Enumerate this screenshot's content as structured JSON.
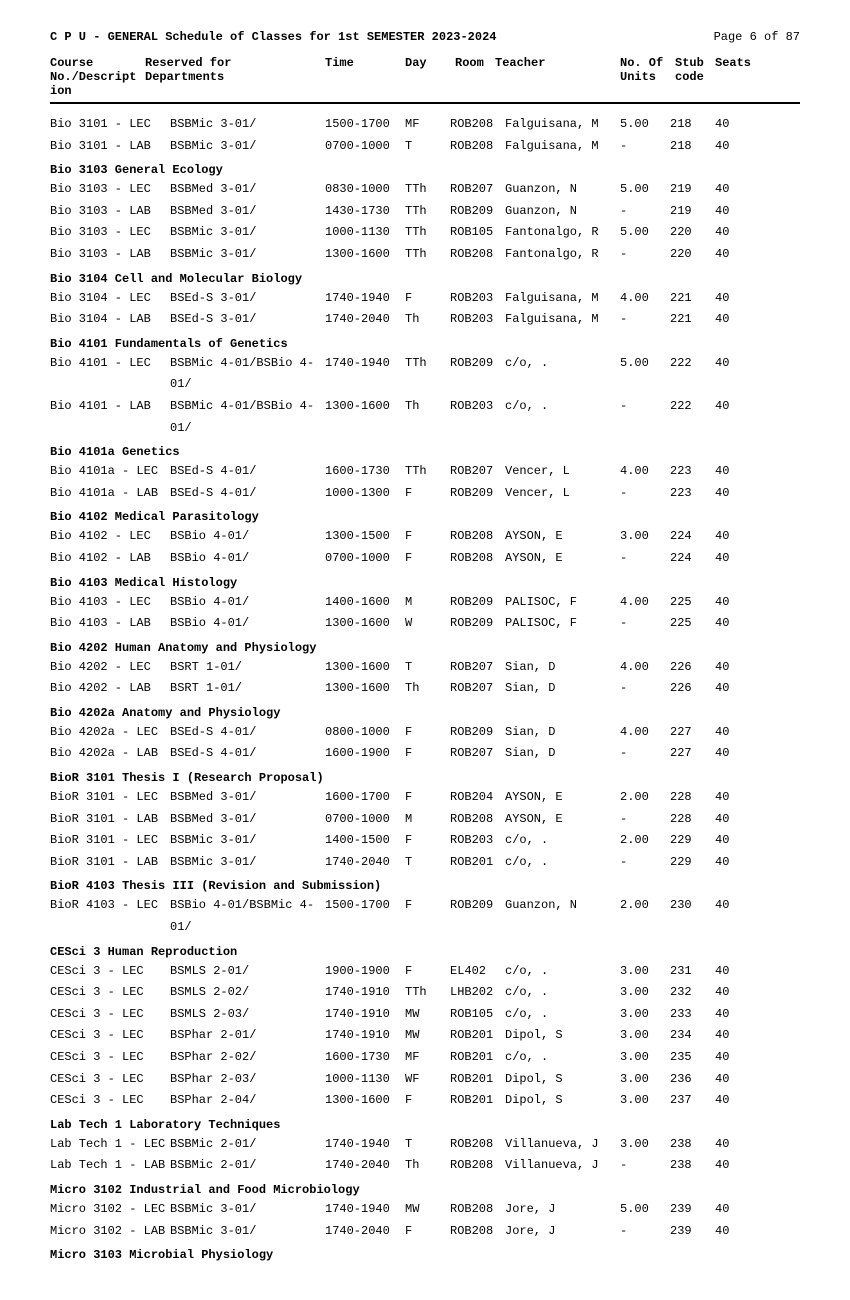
{
  "header": {
    "title": "C P U - GENERAL Schedule of Classes for 1st SEMESTER 2023-2024",
    "page": "Page 6 of 87"
  },
  "columns": {
    "course": "Course No./Descript\nion",
    "dept": "Reserved for Departments",
    "time": "Time",
    "day": "Day",
    "room": "Room",
    "teacher": "Teacher",
    "units": "No. Of Units",
    "stub": "Stub code",
    "seats": "Seats"
  },
  "sections": [
    {
      "title": "",
      "rows": [
        {
          "course": "Bio 3101 - LEC",
          "dept": "BSBMic 3-01/",
          "time": "1500-1700",
          "day": "MF",
          "room": "ROB208",
          "teacher": "Falguisana, M",
          "units": "5.00",
          "stub": "218",
          "seats": "40"
        },
        {
          "course": "Bio 3101 - LAB",
          "dept": "BSBMic 3-01/",
          "time": "0700-1000",
          "day": "T",
          "room": "ROB208",
          "teacher": "Falguisana, M",
          "units": "-",
          "stub": "218",
          "seats": "40"
        }
      ]
    },
    {
      "title": "Bio 3103 General Ecology",
      "rows": [
        {
          "course": "Bio 3103 - LEC",
          "dept": "BSBMed 3-01/",
          "time": "0830-1000",
          "day": "TTh",
          "room": "ROB207",
          "teacher": "Guanzon, N",
          "units": "5.00",
          "stub": "219",
          "seats": "40"
        },
        {
          "course": "Bio 3103 - LAB",
          "dept": "BSBMed 3-01/",
          "time": "1430-1730",
          "day": "TTh",
          "room": "ROB209",
          "teacher": "Guanzon, N",
          "units": "-",
          "stub": "219",
          "seats": "40"
        },
        {
          "course": "Bio 3103 - LEC",
          "dept": "BSBMic 3-01/",
          "time": "1000-1130",
          "day": "TTh",
          "room": "ROB105",
          "teacher": "Fantonalgo, R",
          "units": "5.00",
          "stub": "220",
          "seats": "40"
        },
        {
          "course": "Bio 3103 - LAB",
          "dept": "BSBMic 3-01/",
          "time": "1300-1600",
          "day": "TTh",
          "room": "ROB208",
          "teacher": "Fantonalgo, R",
          "units": "-",
          "stub": "220",
          "seats": "40"
        }
      ]
    },
    {
      "title": "Bio 3104 Cell and Molecular Biology",
      "rows": [
        {
          "course": "Bio 3104 - LEC",
          "dept": "BSEd-S 3-01/",
          "time": "1740-1940",
          "day": "F",
          "room": "ROB203",
          "teacher": "Falguisana, M",
          "units": "4.00",
          "stub": "221",
          "seats": "40"
        },
        {
          "course": "Bio 3104 - LAB",
          "dept": "BSEd-S 3-01/",
          "time": "1740-2040",
          "day": "Th",
          "room": "ROB203",
          "teacher": "Falguisana, M",
          "units": "-",
          "stub": "221",
          "seats": "40"
        }
      ]
    },
    {
      "title": "Bio 4101 Fundamentals of Genetics",
      "rows": [
        {
          "course": "Bio 4101 - LEC",
          "dept": "BSBMic 4-01/BSBio 4-01/",
          "time": "1740-1940",
          "day": "TTh",
          "room": "ROB209",
          "teacher": "c/o, .",
          "units": "5.00",
          "stub": "222",
          "seats": "40"
        },
        {
          "course": "Bio 4101 - LAB",
          "dept": "BSBMic 4-01/BSBio 4-01/",
          "time": "1300-1600",
          "day": "Th",
          "room": "ROB203",
          "teacher": "c/o, .",
          "units": "-",
          "stub": "222",
          "seats": "40"
        }
      ]
    },
    {
      "title": "Bio 4101a Genetics",
      "rows": [
        {
          "course": "Bio 4101a - LEC",
          "dept": "BSEd-S 4-01/",
          "time": "1600-1730",
          "day": "TTh",
          "room": "ROB207",
          "teacher": "Vencer, L",
          "units": "4.00",
          "stub": "223",
          "seats": "40"
        },
        {
          "course": "Bio 4101a - LAB",
          "dept": "BSEd-S 4-01/",
          "time": "1000-1300",
          "day": "F",
          "room": "ROB209",
          "teacher": "Vencer, L",
          "units": "-",
          "stub": "223",
          "seats": "40"
        }
      ]
    },
    {
      "title": "Bio 4102 Medical Parasitology",
      "rows": [
        {
          "course": "Bio 4102 - LEC",
          "dept": "BSBio 4-01/",
          "time": "1300-1500",
          "day": "F",
          "room": "ROB208",
          "teacher": "AYSON, E",
          "units": "3.00",
          "stub": "224",
          "seats": "40"
        },
        {
          "course": "Bio 4102 - LAB",
          "dept": "BSBio 4-01/",
          "time": "0700-1000",
          "day": "F",
          "room": "ROB208",
          "teacher": "AYSON, E",
          "units": "-",
          "stub": "224",
          "seats": "40"
        }
      ]
    },
    {
      "title": "Bio 4103 Medical Histology",
      "rows": [
        {
          "course": "Bio 4103 - LEC",
          "dept": "BSBio 4-01/",
          "time": "1400-1600",
          "day": "M",
          "room": "ROB209",
          "teacher": "PALISOC, F",
          "units": "4.00",
          "stub": "225",
          "seats": "40"
        },
        {
          "course": "Bio 4103 - LAB",
          "dept": "BSBio 4-01/",
          "time": "1300-1600",
          "day": "W",
          "room": "ROB209",
          "teacher": "PALISOC, F",
          "units": "-",
          "stub": "225",
          "seats": "40"
        }
      ]
    },
    {
      "title": "Bio 4202 Human Anatomy and Physiology",
      "rows": [
        {
          "course": "Bio 4202 - LEC",
          "dept": "BSRT 1-01/",
          "time": "1300-1600",
          "day": "T",
          "room": "ROB207",
          "teacher": "Sian, D",
          "units": "4.00",
          "stub": "226",
          "seats": "40"
        },
        {
          "course": "Bio 4202 - LAB",
          "dept": "BSRT 1-01/",
          "time": "1300-1600",
          "day": "Th",
          "room": "ROB207",
          "teacher": "Sian, D",
          "units": "-",
          "stub": "226",
          "seats": "40"
        }
      ]
    },
    {
      "title": "Bio 4202a Anatomy and Physiology",
      "rows": [
        {
          "course": "Bio 4202a - LEC",
          "dept": "BSEd-S 4-01/",
          "time": "0800-1000",
          "day": "F",
          "room": "ROB209",
          "teacher": "Sian, D",
          "units": "4.00",
          "stub": "227",
          "seats": "40"
        },
        {
          "course": "Bio 4202a - LAB",
          "dept": "BSEd-S 4-01/",
          "time": "1600-1900",
          "day": "F",
          "room": "ROB207",
          "teacher": "Sian, D",
          "units": "-",
          "stub": "227",
          "seats": "40"
        }
      ]
    },
    {
      "title": "BioR 3101 Thesis I (Research Proposal)",
      "rows": [
        {
          "course": "BioR 3101 - LEC",
          "dept": "BSBMed 3-01/",
          "time": "1600-1700",
          "day": "F",
          "room": "ROB204",
          "teacher": "AYSON, E",
          "units": "2.00",
          "stub": "228",
          "seats": "40"
        },
        {
          "course": "BioR 3101 - LAB",
          "dept": "BSBMed 3-01/",
          "time": "0700-1000",
          "day": "M",
          "room": "ROB208",
          "teacher": "AYSON, E",
          "units": "-",
          "stub": "228",
          "seats": "40"
        },
        {
          "course": "BioR 3101 - LEC",
          "dept": "BSBMic 3-01/",
          "time": "1400-1500",
          "day": "F",
          "room": "ROB203",
          "teacher": "c/o, .",
          "units": "2.00",
          "stub": "229",
          "seats": "40"
        },
        {
          "course": "BioR 3101 - LAB",
          "dept": "BSBMic 3-01/",
          "time": "1740-2040",
          "day": "T",
          "room": "ROB201",
          "teacher": "c/o, .",
          "units": "-",
          "stub": "229",
          "seats": "40"
        }
      ]
    },
    {
      "title": "BioR 4103 Thesis III (Revision and Submission)",
      "rows": [
        {
          "course": "BioR 4103 - LEC",
          "dept": "BSBio 4-01/BSBMic 4-01/",
          "time": "1500-1700",
          "day": "F",
          "room": "ROB209",
          "teacher": "Guanzon, N",
          "units": "2.00",
          "stub": "230",
          "seats": "40"
        }
      ]
    },
    {
      "title": "CESci 3 Human Reproduction",
      "rows": [
        {
          "course": "CESci 3 - LEC",
          "dept": "BSMLS 2-01/",
          "time": "1900-1900",
          "day": "F",
          "room": "EL402 ",
          "teacher": "c/o, .",
          "units": "3.00",
          "stub": "231",
          "seats": "40"
        },
        {
          "course": "CESci 3 - LEC",
          "dept": "BSMLS 2-02/",
          "time": "1740-1910",
          "day": "TTh",
          "room": "LHB202",
          "teacher": "c/o, .",
          "units": "3.00",
          "stub": "232",
          "seats": "40"
        },
        {
          "course": "CESci 3 - LEC",
          "dept": "BSMLS 2-03/",
          "time": "1740-1910",
          "day": "MW",
          "room": "ROB105",
          "teacher": "c/o, .",
          "units": "3.00",
          "stub": "233",
          "seats": "40"
        },
        {
          "course": "CESci 3 - LEC",
          "dept": "BSPhar 2-01/",
          "time": "1740-1910",
          "day": "MW",
          "room": "ROB201",
          "teacher": "Dipol, S",
          "units": "3.00",
          "stub": "234",
          "seats": "40"
        },
        {
          "course": "CESci 3 - LEC",
          "dept": "BSPhar 2-02/",
          "time": "1600-1730",
          "day": "MF",
          "room": "ROB201",
          "teacher": "c/o, .",
          "units": "3.00",
          "stub": "235",
          "seats": "40"
        },
        {
          "course": "CESci 3 - LEC",
          "dept": "BSPhar 2-03/",
          "time": "1000-1130",
          "day": "WF",
          "room": "ROB201",
          "teacher": "Dipol, S",
          "units": "3.00",
          "stub": "236",
          "seats": "40"
        },
        {
          "course": "CESci 3 - LEC",
          "dept": "BSPhar 2-04/",
          "time": "1300-1600",
          "day": "F",
          "room": "ROB201",
          "teacher": "Dipol, S",
          "units": "3.00",
          "stub": "237",
          "seats": "40"
        }
      ]
    },
    {
      "title": "Lab Tech 1 Laboratory Techniques",
      "rows": [
        {
          "course": "Lab Tech 1 - LEC",
          "dept": "BSBMic 2-01/",
          "time": "1740-1940",
          "day": "T",
          "room": "ROB208",
          "teacher": "Villanueva, J",
          "units": "3.00",
          "stub": "238",
          "seats": "40"
        },
        {
          "course": "Lab Tech 1 - LAB",
          "dept": "BSBMic 2-01/",
          "time": "1740-2040",
          "day": "Th",
          "room": "ROB208",
          "teacher": "Villanueva, J",
          "units": "-",
          "stub": "238",
          "seats": "40"
        }
      ]
    },
    {
      "title": "Micro 3102 Industrial and Food Microbiology",
      "rows": [
        {
          "course": "Micro 3102 - LEC",
          "dept": "BSBMic 3-01/",
          "time": "1740-1940",
          "day": "MW",
          "room": "ROB208",
          "teacher": "Jore, J",
          "units": "5.00",
          "stub": "239",
          "seats": "40"
        },
        {
          "course": "Micro 3102 - LAB",
          "dept": "BSBMic 3-01/",
          "time": "1740-2040",
          "day": "F",
          "room": "ROB208",
          "teacher": "Jore, J",
          "units": "-",
          "stub": "239",
          "seats": "40"
        }
      ]
    },
    {
      "title": "Micro 3103 Microbial Physiology",
      "rows": []
    }
  ]
}
